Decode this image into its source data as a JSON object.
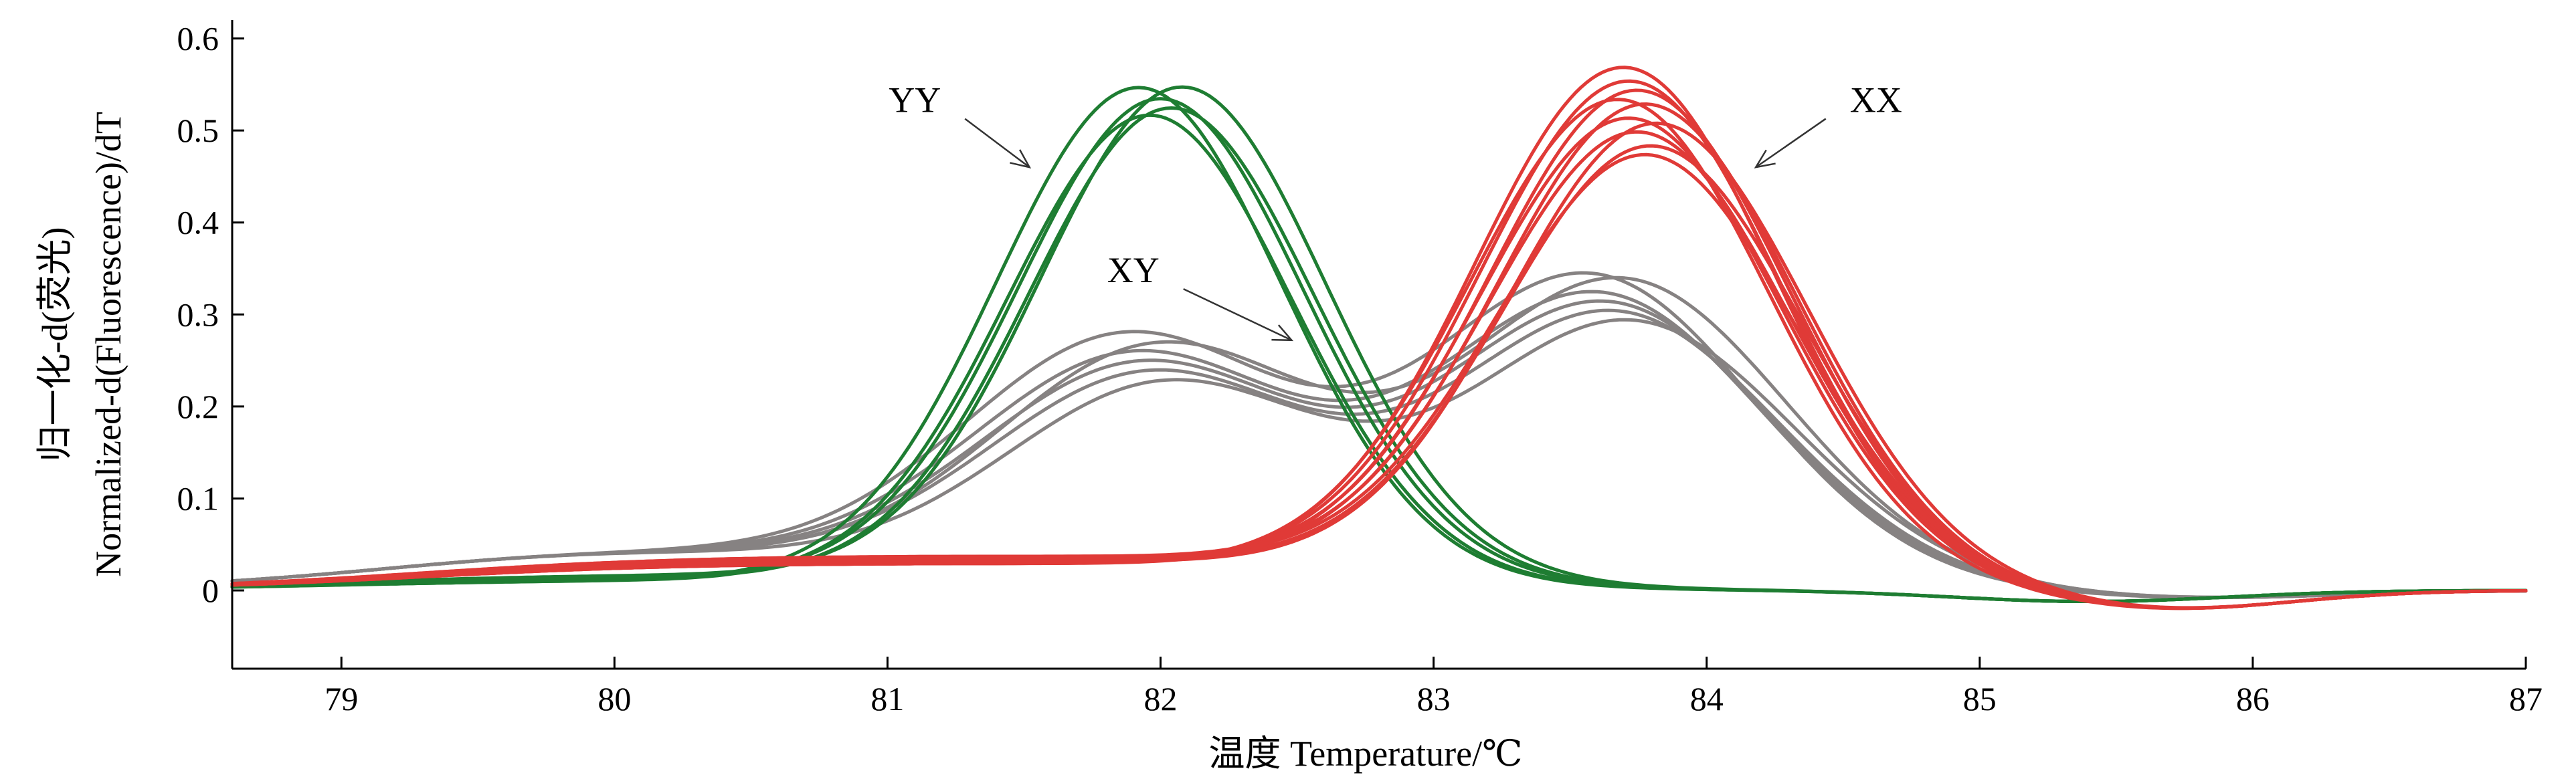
{
  "chart_data": {
    "type": "line",
    "title": "",
    "xlabel": "温度 Temperature/℃",
    "ylabel_lines": [
      "归一化-d(荧光)",
      "Normalized-d(Fluorescence)/dT"
    ],
    "xlim": [
      78.6,
      87
    ],
    "ylim": [
      -0.085,
      0.62
    ],
    "x_ticks": [
      79,
      80,
      81,
      82,
      83,
      84,
      85,
      86,
      87
    ],
    "y_ticks": [
      0,
      0.1,
      0.2,
      0.3,
      0.4,
      0.5,
      0.6
    ],
    "y_tick_labels": [
      "0",
      "0.1",
      "0.2",
      "0.3",
      "0.4",
      "0.5",
      "0.6"
    ],
    "groups": [
      {
        "label": "YY",
        "color": "#1e7d32",
        "curves": [
          {
            "peak_x": 81.92,
            "peak_y": 0.535
          },
          {
            "peak_x": 82.0,
            "peak_y": 0.52
          },
          {
            "peak_x": 82.08,
            "peak_y": 0.53
          },
          {
            "peak_x": 81.96,
            "peak_y": 0.505
          },
          {
            "peak_x": 82.04,
            "peak_y": 0.51
          }
        ]
      },
      {
        "label": "XY",
        "color": "#868282",
        "curves": [
          {
            "peak1_y": 0.27,
            "peak2_y": 0.34
          },
          {
            "peak1_y": 0.25,
            "peak2_y": 0.32
          },
          {
            "peak1_y": 0.24,
            "peak2_y": 0.31
          },
          {
            "peak1_y": 0.23,
            "peak2_y": 0.3
          },
          {
            "peak1_y": 0.26,
            "peak2_y": 0.335
          },
          {
            "peak1_y": 0.22,
            "peak2_y": 0.29
          }
        ]
      },
      {
        "label": "XX",
        "color": "#e03a37",
        "curves": [
          {
            "peak_x": 83.7,
            "peak_y": 0.565
          },
          {
            "peak_x": 83.72,
            "peak_y": 0.55
          },
          {
            "peak_x": 83.75,
            "peak_y": 0.54
          },
          {
            "peak_x": 83.78,
            "peak_y": 0.525
          },
          {
            "peak_x": 83.72,
            "peak_y": 0.51
          },
          {
            "peak_x": 83.75,
            "peak_y": 0.495
          },
          {
            "peak_x": 83.8,
            "peak_y": 0.48
          },
          {
            "peak_x": 83.78,
            "peak_y": 0.47
          },
          {
            "peak_x": 83.68,
            "peak_y": 0.53
          },
          {
            "peak_x": 83.82,
            "peak_y": 0.505
          }
        ]
      }
    ],
    "annotations": [
      {
        "text": "YY",
        "label_x": 81.1,
        "label_y": 0.52,
        "arrow_to_x": 81.52,
        "arrow_to_y": 0.46
      },
      {
        "text": "XY",
        "label_x": 81.9,
        "label_y": 0.335,
        "arrow_to_x": 82.48,
        "arrow_to_y": 0.272
      },
      {
        "text": "XX",
        "label_x": 84.62,
        "label_y": 0.52,
        "arrow_to_x": 84.18,
        "arrow_to_y": 0.46
      }
    ],
    "grid": false,
    "legend": "none"
  }
}
